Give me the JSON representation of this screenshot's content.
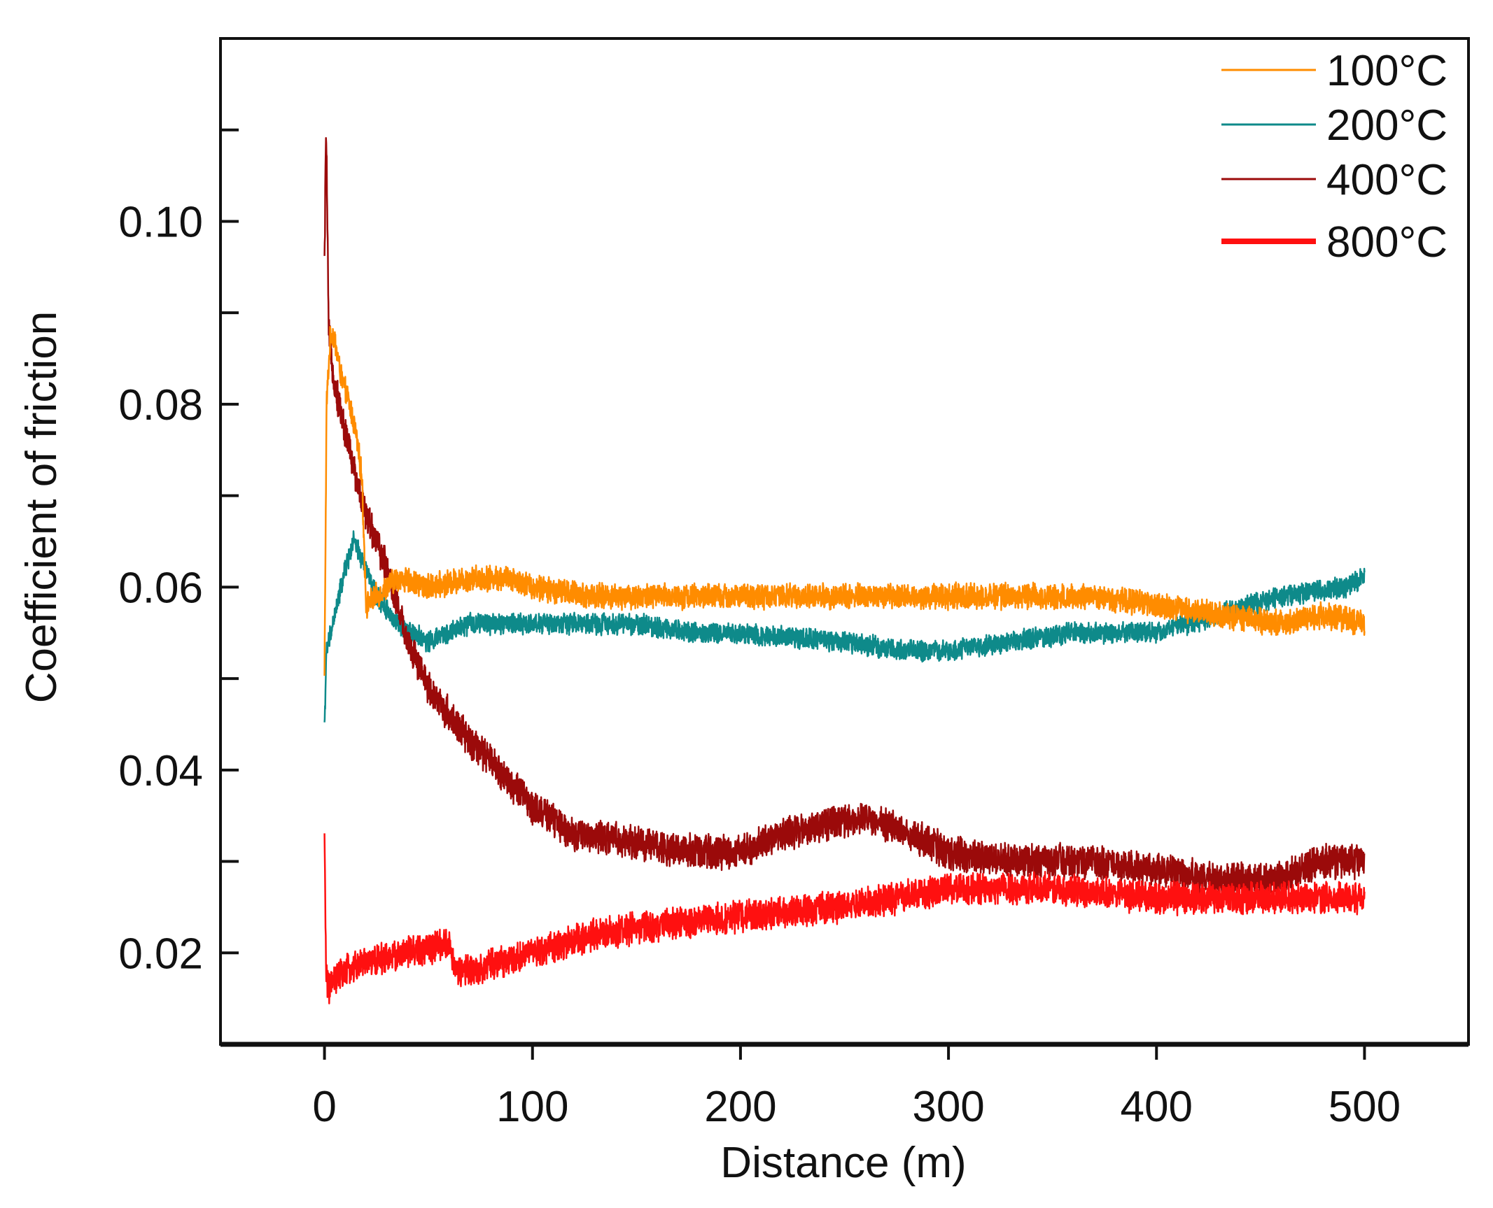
{
  "chart_data": {
    "type": "line",
    "title": "",
    "xlabel": "Distance (m)",
    "ylabel": "Coefficient of friction",
    "xlim": [
      -50,
      550
    ],
    "ylim": [
      0.01,
      0.12
    ],
    "xticks": [
      0,
      100,
      200,
      300,
      400,
      500
    ],
    "xtick_labels": [
      "0",
      "100",
      "200",
      "300",
      "400",
      "500"
    ],
    "yticks": [
      0.02,
      0.03,
      0.04,
      0.05,
      0.06,
      0.07,
      0.08,
      0.09,
      0.1,
      0.11
    ],
    "ytick_labels": [
      "0.02",
      "",
      "0.04",
      "",
      "0.06",
      "",
      "0.08",
      "",
      "0.10",
      ""
    ],
    "grid": false,
    "legend_position": "top-right",
    "series": [
      {
        "name": "100°C",
        "color": "#FF8C00",
        "noise": 0.0012,
        "x": [
          0,
          1,
          3,
          5,
          8,
          12,
          15,
          18,
          20,
          25,
          35,
          50,
          70,
          90,
          100,
          130,
          160,
          200,
          250,
          300,
          350,
          370,
          400,
          430,
          460,
          480,
          500
        ],
        "y": [
          0.05,
          0.08,
          0.088,
          0.087,
          0.083,
          0.08,
          0.077,
          0.072,
          0.058,
          0.059,
          0.061,
          0.06,
          0.061,
          0.061,
          0.06,
          0.059,
          0.059,
          0.059,
          0.059,
          0.059,
          0.059,
          0.059,
          0.058,
          0.057,
          0.056,
          0.057,
          0.056
        ]
      },
      {
        "name": "200°C",
        "color": "#0E8A8A",
        "noise": 0.001,
        "x": [
          0,
          1,
          3,
          6,
          10,
          14,
          18,
          25,
          35,
          50,
          70,
          90,
          120,
          150,
          180,
          200,
          250,
          280,
          300,
          330,
          360,
          400,
          430,
          460,
          490,
          500
        ],
        "y": [
          0.045,
          0.053,
          0.055,
          0.058,
          0.062,
          0.065,
          0.063,
          0.059,
          0.056,
          0.054,
          0.056,
          0.056,
          0.056,
          0.056,
          0.055,
          0.055,
          0.054,
          0.053,
          0.053,
          0.054,
          0.055,
          0.055,
          0.057,
          0.059,
          0.06,
          0.061
        ]
      },
      {
        "name": "400°C",
        "color": "#9B0A0A",
        "noise": 0.0016,
        "x": [
          0,
          0.8,
          2,
          5,
          10,
          15,
          20,
          25,
          30,
          35,
          40,
          50,
          60,
          70,
          80,
          100,
          120,
          150,
          180,
          200,
          220,
          240,
          260,
          280,
          300,
          330,
          360,
          400,
          430,
          460,
          480,
          500
        ],
        "y": [
          0.095,
          0.111,
          0.088,
          0.082,
          0.077,
          0.072,
          0.068,
          0.065,
          0.062,
          0.058,
          0.054,
          0.049,
          0.046,
          0.043,
          0.041,
          0.036,
          0.033,
          0.032,
          0.031,
          0.031,
          0.033,
          0.034,
          0.035,
          0.033,
          0.031,
          0.03,
          0.03,
          0.029,
          0.028,
          0.028,
          0.03,
          0.03
        ]
      },
      {
        "name": "800°C",
        "color": "#FF1010",
        "noise": 0.0015,
        "x": [
          0,
          0.8,
          2,
          5,
          10,
          20,
          40,
          60,
          63,
          70,
          100,
          130,
          160,
          200,
          250,
          300,
          350,
          400,
          450,
          500
        ],
        "y": [
          0.032,
          0.018,
          0.016,
          0.017,
          0.018,
          0.019,
          0.02,
          0.021,
          0.018,
          0.018,
          0.02,
          0.022,
          0.023,
          0.024,
          0.025,
          0.027,
          0.027,
          0.026,
          0.026,
          0.026
        ]
      }
    ]
  }
}
